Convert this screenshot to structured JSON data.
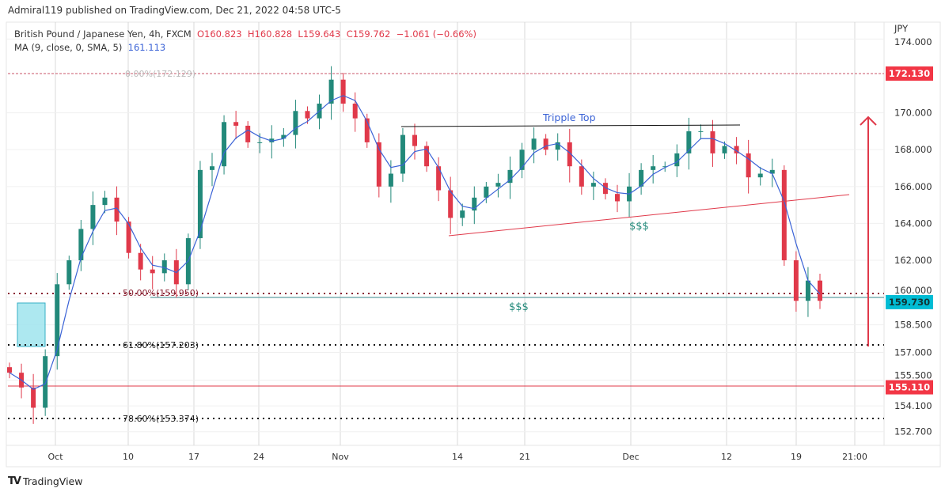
{
  "header": {
    "published": "Admiral119 published on TradingView.com, Dec 21, 2022 04:58 UTC-5"
  },
  "legend": {
    "symbol": "British Pound / Japanese Yen, 4h, FXCM",
    "o": "O160.823",
    "h": "H160.828",
    "l": "L159.643",
    "c": "C159.762",
    "change": "−1.061 (−0.66%)",
    "ma_label": "MA (9, close, 0, SMA, 5)",
    "ma_value": "161.113"
  },
  "footer": {
    "brand": "TradingView"
  },
  "chart_data": {
    "type": "candlestick",
    "currency": "JPY",
    "ylim": [
      152.0,
      174.5
    ],
    "x_tick_labels": [
      "Oct",
      "10",
      "17",
      "24",
      "Nov",
      "14",
      "21",
      "Dec",
      "12",
      "19",
      "21:00"
    ],
    "y_tick_labels": [
      "174.000",
      "170.000",
      "168.000",
      "166.000",
      "164.000",
      "162.000",
      "160.000",
      "158.500",
      "157.000",
      "155.500",
      "154.100",
      "152.700"
    ],
    "closes": [
      155.9,
      155.1,
      154.0,
      156.8,
      160.7,
      162.0,
      163.7,
      165.0,
      165.4,
      164.1,
      162.4,
      161.5,
      161.3,
      162.0,
      160.7,
      163.2,
      166.9,
      167.1,
      169.5,
      169.3,
      168.4,
      168.4,
      168.6,
      168.8,
      170.1,
      169.7,
      170.5,
      171.8,
      170.5,
      169.7,
      168.4,
      166.0,
      166.7,
      168.8,
      168.2,
      167.1,
      165.8,
      164.3,
      164.7,
      165.4,
      166.0,
      166.2,
      166.9,
      168.0,
      168.6,
      168.0,
      168.4,
      167.1,
      166.0,
      166.2,
      165.6,
      165.2,
      166.0,
      166.9,
      167.1,
      167.1,
      167.8,
      169.0,
      169.0,
      167.8,
      168.2,
      167.8,
      166.5,
      166.7,
      166.9,
      162.0,
      159.8,
      160.9,
      159.8
    ],
    "ma": {
      "label": "MA (9, close, 0, SMA, 5)",
      "color": "#3b63d6"
    },
    "colors": {
      "up": "#22897a",
      "down": "#e0394a"
    },
    "price_tags": [
      {
        "value": "172.130",
        "color": "#f23645"
      },
      {
        "value": "159.730",
        "color": "#00bcd4"
      },
      {
        "value": "155.110",
        "color": "#f23645"
      }
    ],
    "fib_levels": [
      {
        "label": "0.00%(172.129)",
        "price": 172.129
      },
      {
        "label": "50.00%(159.950)",
        "price": 159.95
      },
      {
        "label": "61.80%(157.203)",
        "price": 157.203
      },
      {
        "label": "78.60%(153.374)",
        "price": 153.374
      }
    ],
    "annotations": {
      "triple_top": "Tripple Top",
      "liquidity_1": "$$$",
      "liquidity_2": "$$$"
    }
  }
}
